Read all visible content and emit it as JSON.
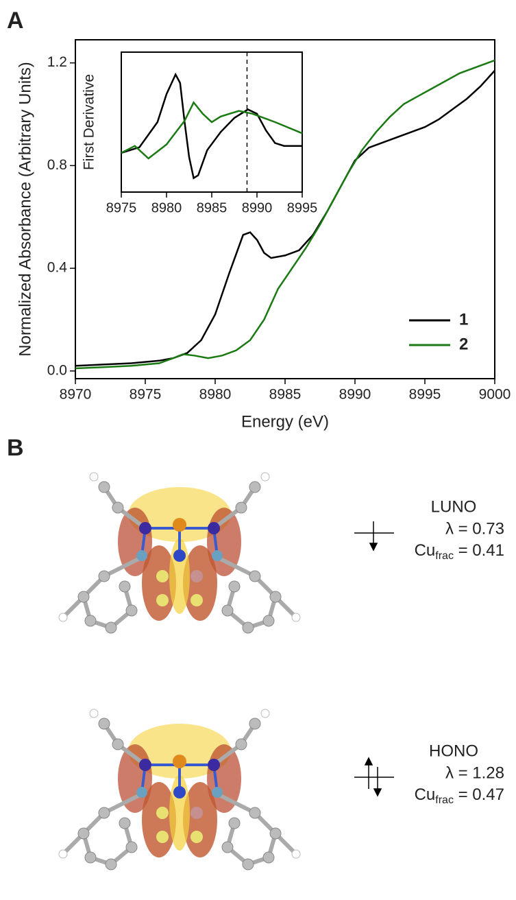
{
  "chart_data": [
    {
      "type": "line",
      "panel_label": "A",
      "xlabel": "Energy (eV)",
      "ylabel": "Normalized Absorbance (Arbitrary Units)",
      "xlim": [
        8970,
        9000
      ],
      "xticks": [
        8970,
        8975,
        8980,
        8985,
        8990,
        8995,
        9000
      ],
      "ylim": [
        -0.03,
        1.29
      ],
      "yticks": [
        {
          "value": 0,
          "label": "0.0"
        },
        0.4,
        0.8,
        1.2
      ],
      "legend": "lower right",
      "series": [
        {
          "name": "1",
          "color": "#000000",
          "x": [
            8970,
            8972,
            8974,
            8976,
            8977,
            8978,
            8979,
            8980,
            8981,
            8982,
            8982.5,
            8983,
            8983.5,
            8984,
            8985,
            8986,
            8987,
            8988,
            8989,
            8990,
            8991,
            8992,
            8993,
            8994,
            8995,
            8996,
            8997,
            8998,
            8999,
            9000
          ],
          "values": [
            0.02,
            0.025,
            0.03,
            0.04,
            0.05,
            0.07,
            0.12,
            0.22,
            0.38,
            0.53,
            0.54,
            0.51,
            0.46,
            0.44,
            0.45,
            0.47,
            0.53,
            0.62,
            0.72,
            0.82,
            0.87,
            0.89,
            0.91,
            0.93,
            0.95,
            0.98,
            1.02,
            1.06,
            1.11,
            1.17
          ]
        },
        {
          "name": "2",
          "color": "#1a7a12",
          "x": [
            8970,
            8972,
            8974,
            8976,
            8977,
            8977.7,
            8978.5,
            8979.5,
            8980.5,
            8981.5,
            8982.5,
            8983.5,
            8984.5,
            8985.5,
            8986.5,
            8987.5,
            8988.5,
            8989.5,
            8990.5,
            8991.5,
            8992.5,
            8993.5,
            8994.5,
            8995.5,
            8996.5,
            8997.5,
            8998.5,
            9000
          ],
          "values": [
            0.01,
            0.015,
            0.02,
            0.03,
            0.05,
            0.065,
            0.06,
            0.05,
            0.06,
            0.08,
            0.12,
            0.2,
            0.32,
            0.4,
            0.48,
            0.57,
            0.67,
            0.77,
            0.86,
            0.93,
            0.99,
            1.04,
            1.07,
            1.1,
            1.13,
            1.16,
            1.18,
            1.21
          ]
        }
      ]
    },
    {
      "type": "line",
      "ylabel": "First Derivative",
      "xlim": [
        8975,
        8995
      ],
      "xticks": [
        8975,
        8980,
        8985,
        8990,
        8995
      ],
      "ylim": [
        0,
        1
      ],
      "vline": 8988.9,
      "series": [
        {
          "color": "#000000",
          "x": [
            8975,
            8977,
            8979,
            8980,
            8981,
            8981.5,
            8982,
            8982.5,
            8983,
            8983.5,
            8984.5,
            8986,
            8987.5,
            8989,
            8990,
            8991,
            8992,
            8993,
            8995
          ],
          "values": [
            0.28,
            0.32,
            0.5,
            0.7,
            0.84,
            0.78,
            0.5,
            0.25,
            0.1,
            0.12,
            0.3,
            0.43,
            0.53,
            0.59,
            0.56,
            0.44,
            0.35,
            0.33,
            0.33
          ]
        },
        {
          "color": "#1a7a12",
          "x": [
            8975,
            8976.5,
            8978,
            8980,
            8982,
            8983,
            8984,
            8985,
            8986,
            8988,
            8989.5,
            8992,
            8995
          ],
          "values": [
            0.28,
            0.33,
            0.24,
            0.34,
            0.51,
            0.64,
            0.56,
            0.5,
            0.54,
            0.58,
            0.56,
            0.5,
            0.42
          ]
        }
      ]
    }
  ],
  "panel_b": {
    "label": "B",
    "orbitals": [
      {
        "name": "LUNO",
        "lambda": "λ = 0.73",
        "cu": "Cu",
        "cu_sub": "frac",
        "cu_value": " = 0.41"
      },
      {
        "name": "HONO",
        "lambda": "λ = 1.28",
        "cu": "Cu",
        "cu_sub": "frac",
        "cu_value": " = 0.47"
      }
    ]
  }
}
